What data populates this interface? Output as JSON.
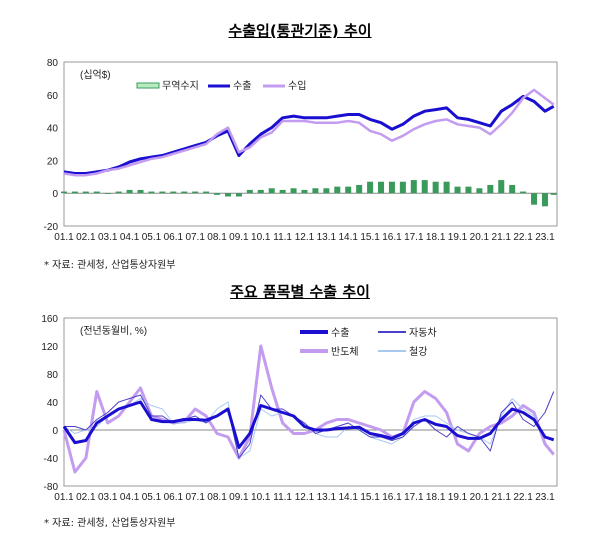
{
  "chart_data": [
    {
      "type": "line+bar",
      "title": "수출입(통관기준) 추이",
      "unit_label": "(십억$)",
      "ylim": [
        -20,
        80
      ],
      "yticks": [
        80,
        60,
        40,
        20,
        0,
        -20
      ],
      "xtick_labels": [
        "01.1",
        "02.1",
        "03.1",
        "04.1",
        "05.1",
        "06.1",
        "07.1",
        "08.1",
        "09.1",
        "10.1",
        "11.1",
        "12.1",
        "13.1",
        "14.1",
        "15.1",
        "16.1",
        "17.1",
        "18.1",
        "19.1",
        "20.1",
        "21.1",
        "22.1",
        "23.1"
      ],
      "x": [
        2001.0,
        2001.5,
        2002.0,
        2002.5,
        2003.0,
        2003.5,
        2004.0,
        2004.5,
        2005.0,
        2005.5,
        2006.0,
        2006.5,
        2007.0,
        2007.5,
        2008.0,
        2008.5,
        2009.0,
        2009.5,
        2010.0,
        2010.5,
        2011.0,
        2011.5,
        2012.0,
        2012.5,
        2013.0,
        2013.5,
        2014.0,
        2014.5,
        2015.0,
        2015.5,
        2016.0,
        2016.5,
        2017.0,
        2017.5,
        2018.0,
        2018.5,
        2019.0,
        2019.5,
        2020.0,
        2020.5,
        2021.0,
        2021.5,
        2022.0,
        2022.5,
        2023.0,
        2023.4
      ],
      "series": [
        {
          "name": "무역수지",
          "kind": "bar",
          "color": "#3a9a5b",
          "values": [
            1,
            1,
            1,
            1,
            0,
            1,
            2,
            2,
            1,
            1,
            1,
            1,
            1,
            1,
            -1,
            -2,
            -2,
            2,
            2,
            3,
            2,
            3,
            2,
            3,
            3,
            4,
            4,
            5,
            7,
            7,
            7,
            7,
            8,
            8,
            7,
            7,
            4,
            4,
            3,
            5,
            8,
            5,
            1,
            -7,
            -8,
            -1
          ]
        },
        {
          "name": "수출",
          "kind": "line",
          "color": "#1a0fd0",
          "values": [
            13,
            12,
            12,
            13,
            14,
            16,
            19,
            21,
            22,
            23,
            25,
            27,
            29,
            31,
            35,
            38,
            23,
            30,
            36,
            40,
            46,
            47,
            46,
            46,
            46,
            47,
            48,
            48,
            45,
            43,
            39,
            42,
            47,
            50,
            51,
            52,
            46,
            45,
            43,
            41,
            50,
            54,
            59,
            56,
            50,
            53
          ]
        },
        {
          "name": "수입",
          "kind": "line",
          "color": "#c39cf0",
          "values": [
            12,
            11,
            11,
            12,
            14,
            15,
            17,
            19,
            21,
            22,
            24,
            26,
            28,
            30,
            36,
            40,
            25,
            28,
            34,
            37,
            44,
            44,
            44,
            43,
            43,
            43,
            44,
            43,
            38,
            36,
            32,
            35,
            39,
            42,
            44,
            45,
            42,
            41,
            40,
            36,
            42,
            49,
            58,
            63,
            58,
            54
          ]
        }
      ],
      "legend": "top-left",
      "grid": false,
      "source": "* 자료: 관세청, 산업통상자원부"
    },
    {
      "type": "line",
      "title": "주요 품목별 수출 추이",
      "unit_label": "(전년동월비, %)",
      "ylim": [
        -80,
        160
      ],
      "yticks": [
        160,
        120,
        80,
        40,
        0,
        -40,
        -80
      ],
      "xtick_labels": [
        "01.1",
        "02.1",
        "03.1",
        "04.1",
        "05.1",
        "06.1",
        "07.1",
        "08.1",
        "09.1",
        "10.1",
        "11.1",
        "12.1",
        "13.1",
        "14.1",
        "15.1",
        "16.1",
        "17.1",
        "18.1",
        "19.1",
        "20.1",
        "21.1",
        "22.1",
        "23.1"
      ],
      "x": [
        2001.0,
        2001.5,
        2002.0,
        2002.5,
        2003.0,
        2003.5,
        2004.0,
        2004.5,
        2005.0,
        2005.5,
        2006.0,
        2006.5,
        2007.0,
        2007.5,
        2008.0,
        2008.5,
        2009.0,
        2009.5,
        2010.0,
        2010.5,
        2011.0,
        2011.5,
        2012.0,
        2012.5,
        2013.0,
        2013.5,
        2014.0,
        2014.5,
        2015.0,
        2015.5,
        2016.0,
        2016.5,
        2017.0,
        2017.5,
        2018.0,
        2018.5,
        2019.0,
        2019.5,
        2020.0,
        2020.5,
        2021.0,
        2021.5,
        2022.0,
        2022.5,
        2023.0,
        2023.4
      ],
      "series": [
        {
          "name": "반도체",
          "color": "#c39cf0",
          "width": 3,
          "values": [
            0,
            -60,
            -40,
            55,
            10,
            20,
            40,
            60,
            20,
            15,
            10,
            12,
            30,
            20,
            -5,
            -10,
            -40,
            -10,
            120,
            60,
            10,
            -5,
            -5,
            0,
            10,
            15,
            15,
            10,
            5,
            0,
            -10,
            -5,
            40,
            55,
            45,
            25,
            -20,
            -30,
            -5,
            5,
            10,
            20,
            35,
            25,
            -20,
            -35
          ]
        },
        {
          "name": "철강",
          "color": "#a9c8f0",
          "width": 1,
          "values": [
            5,
            -5,
            0,
            5,
            20,
            30,
            35,
            45,
            35,
            30,
            10,
            10,
            15,
            10,
            30,
            40,
            -40,
            -30,
            30,
            20,
            25,
            20,
            10,
            -5,
            -10,
            -10,
            5,
            0,
            -10,
            -15,
            -20,
            -10,
            15,
            20,
            20,
            10,
            0,
            -5,
            -10,
            -20,
            20,
            45,
            30,
            20,
            -10,
            -15
          ]
        },
        {
          "name": "자동차",
          "color": "#4a3fc8",
          "width": 1,
          "values": [
            5,
            5,
            0,
            15,
            25,
            40,
            45,
            50,
            20,
            20,
            10,
            15,
            20,
            10,
            20,
            30,
            -40,
            -20,
            50,
            30,
            30,
            20,
            10,
            -5,
            0,
            5,
            10,
            0,
            -10,
            -10,
            -15,
            -10,
            5,
            15,
            0,
            -10,
            5,
            -5,
            -10,
            -30,
            25,
            40,
            15,
            5,
            25,
            55
          ]
        },
        {
          "name": "수출",
          "color": "#1a0fd0",
          "width": 3,
          "values": [
            5,
            -18,
            -15,
            10,
            20,
            30,
            35,
            40,
            15,
            12,
            12,
            15,
            15,
            14,
            20,
            30,
            -25,
            -5,
            35,
            30,
            25,
            20,
            5,
            0,
            0,
            2,
            3,
            4,
            -5,
            -8,
            -12,
            -5,
            10,
            15,
            8,
            5,
            -8,
            -12,
            -12,
            -5,
            15,
            30,
            25,
            15,
            -10,
            -14
          ]
        }
      ],
      "legend": "top-right",
      "grid": false,
      "zero_line": true,
      "source": "* 자료: 관세청, 산업통상자원부"
    }
  ]
}
